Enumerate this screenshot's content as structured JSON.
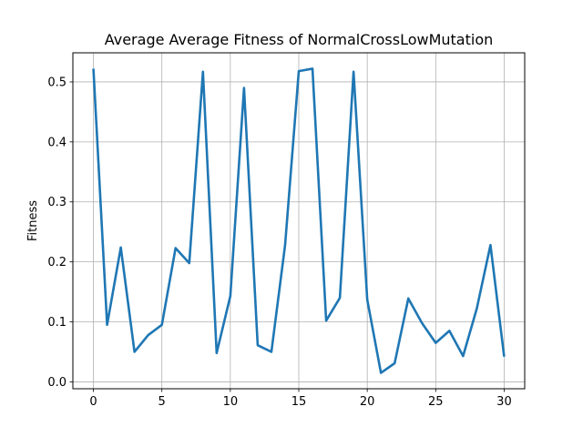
{
  "chart_data": {
    "type": "line",
    "title": "Average Average Fitness of NormalCrossLowMutation",
    "xlabel": "",
    "ylabel": "Fitness",
    "xlim": [
      -1.5,
      31.5
    ],
    "ylim": [
      -0.0115,
      0.5485
    ],
    "xticks": [
      0,
      5,
      10,
      15,
      20,
      25,
      30
    ],
    "yticks": [
      0.0,
      0.1,
      0.2,
      0.3,
      0.4,
      0.5
    ],
    "ytick_labels": [
      "0.0",
      "0.1",
      "0.2",
      "0.3",
      "0.4",
      "0.5"
    ],
    "grid": true,
    "line_color": "#1f77b4",
    "series": [
      {
        "x": [
          0,
          1,
          2,
          3,
          4,
          5,
          6,
          7,
          8,
          9,
          10,
          11,
          12,
          13,
          14,
          15,
          16,
          17,
          18,
          19,
          20,
          21,
          22,
          23,
          24,
          25,
          26,
          27,
          28,
          29,
          30
        ],
        "values": [
          0.522,
          0.095,
          0.224,
          0.05,
          0.078,
          0.095,
          0.223,
          0.198,
          0.517,
          0.048,
          0.143,
          0.49,
          0.061,
          0.05,
          0.228,
          0.518,
          0.522,
          0.102,
          0.14,
          0.517,
          0.137,
          0.015,
          0.031,
          0.139,
          0.098,
          0.065,
          0.085,
          0.043,
          0.122,
          0.228,
          0.042
        ]
      }
    ]
  }
}
